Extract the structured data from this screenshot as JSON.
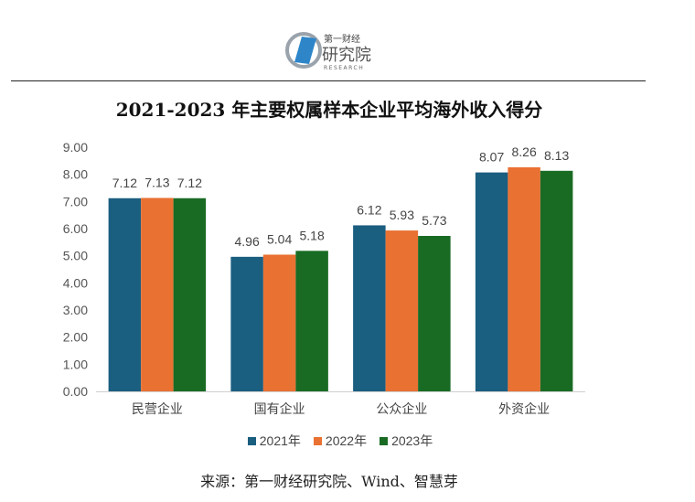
{
  "logo": {
    "text_top": "第一财经",
    "text_main": "研究院",
    "text_sub": "RESEARCH"
  },
  "title": "2021-2023 年主要权属样本企业平均海外收入得分",
  "source": "来源：第一财经研究院、Wind、智慧芽",
  "chart_data": {
    "type": "bar",
    "title": "2021-2023 年主要权属样本企业平均海外收入得分",
    "categories": [
      "民营企业",
      "国有企业",
      "公众企业",
      "外资企业"
    ],
    "series": [
      {
        "name": "2021年",
        "color": "#1a5e80",
        "values": [
          7.12,
          4.96,
          6.12,
          8.07
        ]
      },
      {
        "name": "2022年",
        "color": "#e97132",
        "values": [
          7.13,
          5.04,
          5.93,
          8.26
        ]
      },
      {
        "name": "2023年",
        "color": "#196b24",
        "values": [
          7.12,
          5.18,
          5.73,
          8.13
        ]
      }
    ],
    "ylim": [
      0,
      9
    ],
    "yticks": [
      "0.00",
      "1.00",
      "2.00",
      "3.00",
      "4.00",
      "5.00",
      "6.00",
      "7.00",
      "8.00",
      "9.00"
    ],
    "xlabel": "",
    "ylabel": "",
    "grid": false,
    "legend": "bottom"
  }
}
